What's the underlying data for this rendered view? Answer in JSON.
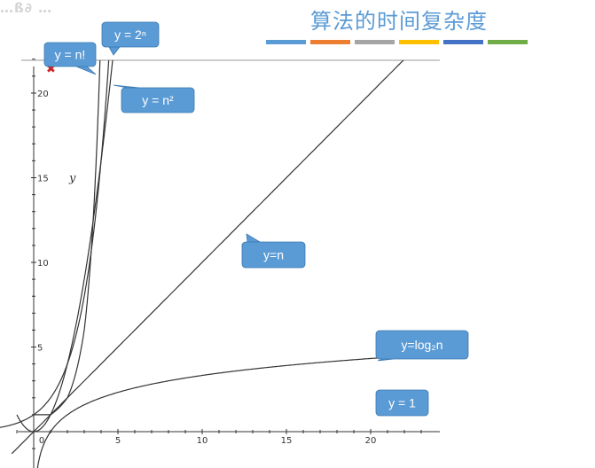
{
  "watermark": "…ß∂ …",
  "title": "算法的时间复杂度",
  "swatch_colors": [
    "#5b9bd5",
    "#ed7d31",
    "#a5a5a5",
    "#ffc000",
    "#4472c4",
    "#70ad47"
  ],
  "chart_data": {
    "type": "line",
    "title": "",
    "xlabel": "",
    "ylabel": "y",
    "xlim": [
      -2,
      23
    ],
    "ylim": [
      -2,
      22.5
    ],
    "x_ticks": [
      0,
      5,
      10,
      15,
      20
    ],
    "y_ticks": [
      5,
      10,
      15,
      20
    ],
    "grid": false,
    "curve_color": "#333333",
    "callout_color": "#5b9bd5",
    "series": [
      {
        "function": "n!",
        "x": [
          0,
          1,
          2,
          3,
          3.5,
          4,
          4.2
        ],
        "y": [
          1,
          1,
          2,
          6,
          11.6,
          24,
          30.8
        ],
        "label": "y = n!"
      },
      {
        "function": "2^n",
        "x": [
          -2,
          -1,
          0,
          1,
          2,
          3,
          4,
          4.5,
          4.6
        ],
        "y": [
          0.25,
          0.5,
          1,
          2,
          4,
          8,
          16,
          22.6,
          24.3
        ],
        "label": "y = 2ⁿ"
      },
      {
        "function": "n^2",
        "x": [
          -2,
          -1,
          0,
          1,
          2,
          3,
          4,
          4.6
        ],
        "y": [
          4,
          1,
          0,
          1,
          4,
          9,
          16,
          21.2
        ],
        "label": "y = n²"
      },
      {
        "function": "n",
        "x": [
          -2,
          0,
          5,
          10,
          15,
          20,
          22.5
        ],
        "y": [
          -2,
          0,
          5,
          10,
          15,
          20,
          22.5
        ],
        "label": "y=n"
      },
      {
        "function": "log2(n)",
        "x": [
          0.25,
          0.5,
          1,
          2,
          5,
          10,
          15,
          20,
          23
        ],
        "y": [
          -2,
          -1,
          0,
          1,
          2.32,
          3.32,
          3.91,
          4.32,
          4.52
        ],
        "label": "y=log₂n"
      },
      {
        "function": "1",
        "x": [
          -2,
          23
        ],
        "y": [
          1,
          1
        ],
        "label": "y = 1"
      }
    ]
  }
}
